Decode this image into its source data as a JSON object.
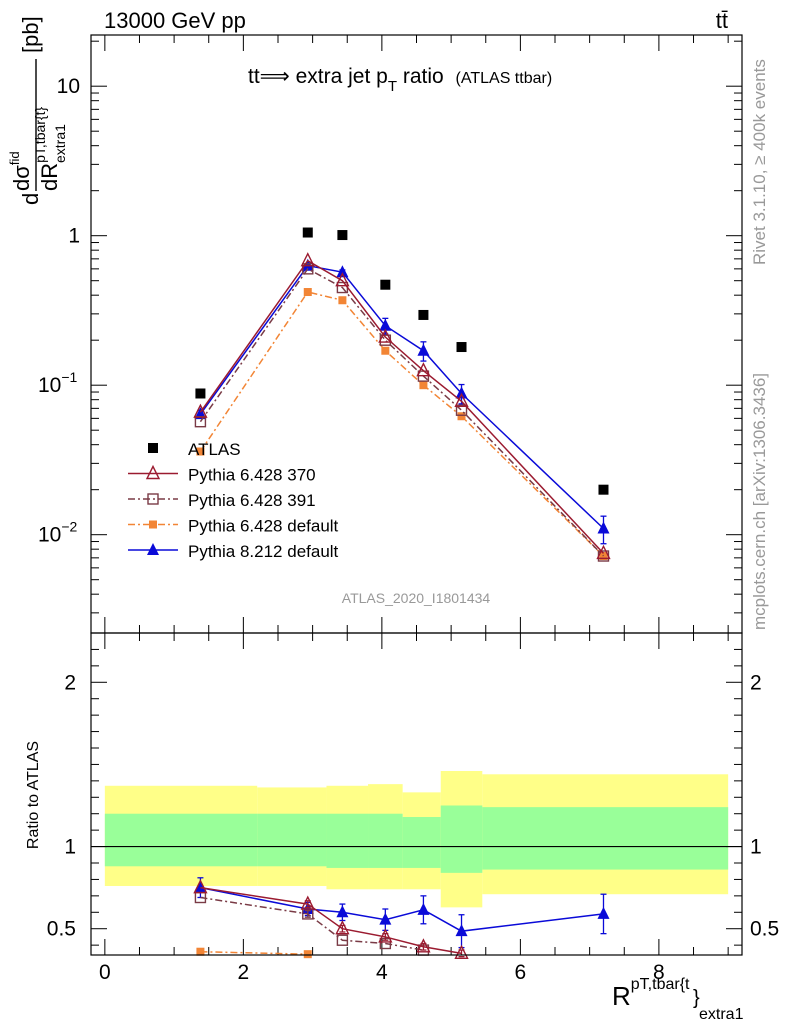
{
  "header": {
    "energy": "13000 GeV pp",
    "process": "tt̄"
  },
  "side_labels": {
    "rivet": "Rivet 3.1.10, ≥ 400k events",
    "mcplots": "mcplots.cern.ch [arXiv:1306.3436]"
  },
  "watermark": "ATLAS_2020_I1801434",
  "colors": {
    "atlas": "#000000",
    "p370": "#9b1b30",
    "p391": "#7a3b46",
    "pdefault": "#f28535",
    "p8": "#0a0ad8",
    "band_yellow": "#ffff88",
    "band_green": "#99ff99"
  },
  "chart_data": [
    {
      "type": "scatter",
      "title": "tt⟹ extra jet p",
      "title_sub": "T",
      "title_tail": " ratio",
      "title_note": "(ATLAS ttbar)",
      "ylabel": "d dσ^{fid} / dR^{pT,tbar{t}}_{extra1} [pb]",
      "ylabel_parts": {
        "d": "d",
        "num": "dσ",
        "num_sup": "fid",
        "den": "dR",
        "den_sup": "pT,tbar{t}",
        "den_sub": "extra1",
        "unit": "[pb]"
      },
      "yscale": "log",
      "ylim": [
        0.0022,
        22
      ],
      "xlim": [
        -0.2,
        9.2
      ],
      "yticks": [
        {
          "v": 0.01,
          "b": "10",
          "e": "−2"
        },
        {
          "v": 0.1,
          "b": "10",
          "e": "−1"
        },
        {
          "v": 1,
          "b": "1",
          "e": ""
        },
        {
          "v": 10,
          "b": "10",
          "e": ""
        }
      ],
      "legend_position": "lower-left",
      "series": [
        {
          "name": "ATLAS",
          "key": "atlas",
          "marker": "square",
          "line": "none",
          "x": [
            1.38,
            2.93,
            3.43,
            4.05,
            4.6,
            5.15,
            7.2
          ],
          "y": [
            0.088,
            1.05,
            1.01,
            0.47,
            0.295,
            0.18,
            0.02
          ],
          "yerr": [
            0,
            0,
            0,
            0,
            0,
            0,
            0
          ]
        },
        {
          "name": "Pythia 6.428 370",
          "key": "p370",
          "marker": "triangle-open",
          "line": "solid",
          "x": [
            1.38,
            2.93,
            3.43,
            4.05,
            4.6,
            5.15,
            7.2
          ],
          "y": [
            0.066,
            0.68,
            0.5,
            0.21,
            0.125,
            0.078,
            0.0075
          ],
          "yerr": [
            0,
            0,
            0,
            0,
            0,
            0,
            0
          ]
        },
        {
          "name": "Pythia 6.428 391",
          "key": "p391",
          "marker": "square-open",
          "line": "dashdot",
          "x": [
            1.38,
            2.93,
            3.43,
            4.05,
            4.6,
            5.15,
            7.2
          ],
          "y": [
            0.057,
            0.6,
            0.45,
            0.2,
            0.115,
            0.068,
            0.0072
          ],
          "yerr": [
            0,
            0,
            0,
            0,
            0,
            0,
            0
          ]
        },
        {
          "name": "Pythia 6.428 default",
          "key": "pdefault",
          "marker": "square-small",
          "line": "dashdot",
          "x": [
            1.38,
            2.93,
            3.43,
            4.05,
            4.6,
            5.15,
            7.2
          ],
          "y": [
            0.036,
            0.42,
            0.37,
            0.17,
            0.1,
            0.062,
            0.0072
          ],
          "yerr": [
            0,
            0,
            0,
            0,
            0,
            0,
            0
          ]
        },
        {
          "name": "Pythia 8.212 default",
          "key": "p8",
          "marker": "triangle",
          "line": "solid",
          "x": [
            1.38,
            2.93,
            3.43,
            4.05,
            4.6,
            5.15,
            7.2
          ],
          "y": [
            0.064,
            0.63,
            0.57,
            0.25,
            0.17,
            0.088,
            0.011
          ],
          "yerr": [
            0.004,
            0.02,
            0.02,
            0.03,
            0.025,
            0.013,
            0.0023
          ]
        }
      ]
    },
    {
      "type": "scatter",
      "ylabel": "Ratio to ATLAS",
      "xlabel": "R^{pT,tbar{t}}_{extra1}",
      "xlabel_parts": {
        "base": "R",
        "sup": "pT,tbar{t",
        "sup_close": "}",
        "sub": "extra1"
      },
      "ylim": [
        0.34,
        2.3
      ],
      "xlim": [
        -0.2,
        9.2
      ],
      "yticks": [
        0.5,
        1,
        2
      ],
      "xticks": [
        0,
        2,
        4,
        6,
        8
      ],
      "reference_line": 1,
      "bands": [
        {
          "x0": 0.0,
          "x1": 2.2,
          "yellow": [
            0.76,
            1.37
          ],
          "green": [
            0.88,
            1.2
          ]
        },
        {
          "x0": 2.2,
          "x1": 3.2,
          "yellow": [
            0.76,
            1.36
          ],
          "green": [
            0.88,
            1.2
          ]
        },
        {
          "x0": 3.2,
          "x1": 3.8,
          "yellow": [
            0.74,
            1.37
          ],
          "green": [
            0.87,
            1.2
          ]
        },
        {
          "x0": 3.8,
          "x1": 4.3,
          "yellow": [
            0.74,
            1.38
          ],
          "green": [
            0.87,
            1.2
          ]
        },
        {
          "x0": 4.3,
          "x1": 4.85,
          "yellow": [
            0.74,
            1.33
          ],
          "green": [
            0.87,
            1.18
          ]
        },
        {
          "x0": 4.85,
          "x1": 5.45,
          "yellow": [
            0.63,
            1.46
          ],
          "green": [
            0.84,
            1.25
          ]
        },
        {
          "x0": 5.45,
          "x1": 9.0,
          "yellow": [
            0.71,
            1.44
          ],
          "green": [
            0.86,
            1.24
          ]
        }
      ],
      "series": [
        {
          "name": "Pythia 6.428 370",
          "key": "p370",
          "marker": "triangle-open",
          "line": "solid",
          "x": [
            1.38,
            2.93,
            3.43,
            4.05,
            4.6,
            5.15
          ],
          "y": [
            0.75,
            0.65,
            0.5,
            0.45,
            0.39,
            0.35
          ],
          "yerr": [
            0,
            0.02,
            0.02,
            0.02,
            0.02,
            0.02
          ]
        },
        {
          "name": "Pythia 6.428 391",
          "key": "p391",
          "marker": "square-open",
          "line": "dashdot",
          "x": [
            1.38,
            2.93,
            3.43,
            4.05,
            4.6
          ],
          "y": [
            0.69,
            0.59,
            0.43,
            0.41,
            0.37
          ],
          "yerr": [
            0,
            0.02,
            0,
            0,
            0
          ]
        },
        {
          "name": "Pythia 6.428 default",
          "key": "pdefault",
          "marker": "square-small",
          "line": "dashdot",
          "x": [
            1.38,
            2.93
          ],
          "y": [
            0.36,
            0.345
          ],
          "yerr": [
            0.01,
            0
          ]
        },
        {
          "name": "Pythia 8.212 default",
          "key": "p8",
          "marker": "triangle",
          "line": "solid",
          "x": [
            1.38,
            2.93,
            3.43,
            4.05,
            4.6,
            5.15,
            7.2
          ],
          "y": [
            0.75,
            0.62,
            0.6,
            0.555,
            0.615,
            0.485,
            0.59
          ],
          "yerr": [
            0.06,
            0.04,
            0.05,
            0.065,
            0.085,
            0.1,
            0.12
          ]
        }
      ]
    }
  ]
}
